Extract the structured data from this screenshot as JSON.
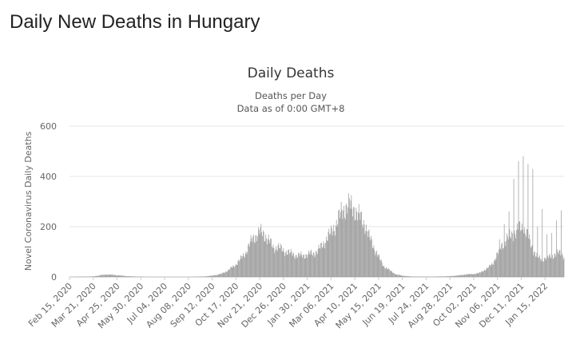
{
  "page": {
    "title": "Daily New Deaths in Hungary"
  },
  "chart_data": {
    "type": "bar",
    "title": "Daily Deaths",
    "subtitle_lines": [
      "Deaths per Day",
      "Data as of 0:00 GMT+8"
    ],
    "ylabel": "Novel Coronavirus Daily Deaths",
    "xlabel": "",
    "ylim": [
      0,
      600
    ],
    "yticks": [
      0,
      200,
      400,
      600
    ],
    "grid": true,
    "legend": "none",
    "bar_color": "#999999",
    "date_range": [
      "2020-02-15",
      "2022-02-12"
    ],
    "xtick_labels": [
      "Feb 15, 2020",
      "Mar 21, 2020",
      "Apr 25, 2020",
      "May 30, 2020",
      "Jul 04, 2020",
      "Aug 08, 2020",
      "Sep 12, 2020",
      "Oct 17, 2020",
      "Nov 21, 2020",
      "Dec 26, 2020",
      "Jan 30, 2021",
      "Mar 06, 2021",
      "Apr 10, 2021",
      "May 15, 2021",
      "Jun 19, 2021",
      "Jul 24, 2021",
      "Aug 28, 2021",
      "Oct 02, 2021",
      "Nov 06, 2021",
      "Dec 11, 2021",
      "Jan 15, 2022"
    ],
    "series": [
      {
        "name": "",
        "x": [
          "2020-02-15",
          "2020-03-21",
          "2020-04-01",
          "2020-04-10",
          "2020-04-25",
          "2020-05-10",
          "2020-05-30",
          "2020-06-15",
          "2020-07-04",
          "2020-08-08",
          "2020-09-01",
          "2020-09-12",
          "2020-09-25",
          "2020-10-05",
          "2020-10-17",
          "2020-10-25",
          "2020-11-01",
          "2020-11-10",
          "2020-11-21",
          "2020-11-25",
          "2020-12-01",
          "2020-12-08",
          "2020-12-12",
          "2020-12-18",
          "2020-12-26",
          "2021-01-05",
          "2021-01-15",
          "2021-01-25",
          "2021-01-30",
          "2021-02-10",
          "2021-02-20",
          "2021-03-01",
          "2021-03-06",
          "2021-03-15",
          "2021-03-22",
          "2021-03-28",
          "2021-04-02",
          "2021-04-10",
          "2021-04-17",
          "2021-04-25",
          "2021-05-01",
          "2021-05-08",
          "2021-05-15",
          "2021-05-22",
          "2021-06-01",
          "2021-06-10",
          "2021-06-19",
          "2021-07-01",
          "2021-07-24",
          "2021-08-15",
          "2021-08-28",
          "2021-09-10",
          "2021-09-20",
          "2021-10-02",
          "2021-10-10",
          "2021-10-16",
          "2021-10-23",
          "2021-10-30",
          "2021-11-06",
          "2021-11-13",
          "2021-11-20",
          "2021-11-27",
          "2021-12-04",
          "2021-12-11",
          "2021-12-18",
          "2021-12-25",
          "2022-01-01",
          "2022-01-08",
          "2022-01-15",
          "2022-01-22",
          "2022-01-29",
          "2022-02-05",
          "2022-02-12"
        ],
        "values": [
          0,
          2,
          7,
          10,
          7,
          3,
          1,
          0,
          0,
          0,
          2,
          5,
          12,
          25,
          50,
          75,
          100,
          150,
          180,
          175,
          160,
          130,
          115,
          120,
          105,
          95,
          85,
          85,
          90,
          95,
          120,
          160,
          175,
          220,
          260,
          280,
          285,
          270,
          240,
          210,
          160,
          120,
          80,
          45,
          25,
          10,
          5,
          2,
          1,
          2,
          3,
          6,
          10,
          12,
          15,
          25,
          35,
          55,
          90,
          130,
          150,
          170,
          180,
          200,
          180,
          130,
          90,
          70,
          75,
          80,
          90,
          95,
          85
        ],
        "spikes": [
          {
            "x": "2021-11-09",
            "value": 150
          },
          {
            "x": "2021-11-16",
            "value": 210
          },
          {
            "x": "2021-11-23",
            "value": 260
          },
          {
            "x": "2021-11-30",
            "value": 390
          },
          {
            "x": "2021-12-07",
            "value": 460
          },
          {
            "x": "2021-12-14",
            "value": 480
          },
          {
            "x": "2021-12-21",
            "value": 450
          },
          {
            "x": "2021-12-28",
            "value": 430
          },
          {
            "x": "2022-01-04",
            "value": 200
          },
          {
            "x": "2022-01-11",
            "value": 270
          },
          {
            "x": "2022-01-18",
            "value": 170
          },
          {
            "x": "2022-01-25",
            "value": 175
          },
          {
            "x": "2022-02-01",
            "value": 225
          },
          {
            "x": "2022-02-08",
            "value": 265
          }
        ]
      }
    ]
  }
}
